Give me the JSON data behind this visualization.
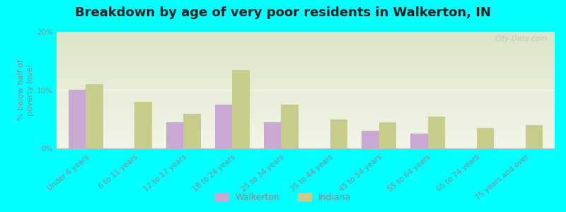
{
  "title": "Breakdown by age of very poor residents in Walkerton, IN",
  "ylabel": "% below half of\npoverty level",
  "categories": [
    "Under 6 years",
    "6 to 11 years",
    "12 to 17 years",
    "18 to 24 years",
    "25 to 34 years",
    "35 to 44 years",
    "45 to 54 years",
    "55 to 64 years",
    "65 to 74 years",
    "75 years and over"
  ],
  "walkerton": [
    10.0,
    0,
    4.5,
    7.5,
    4.5,
    0,
    3.0,
    2.5,
    0,
    0
  ],
  "indiana": [
    11.0,
    8.0,
    6.0,
    13.5,
    7.5,
    5.0,
    4.5,
    5.5,
    3.5,
    4.0
  ],
  "walkerton_color": "#c9a8d4",
  "indiana_color": "#c8cc8a",
  "background_color": "#00ffff",
  "plot_bg_color_top": "#dde5c8",
  "plot_bg_color_bottom": "#f2f5e8",
  "ylim": [
    0,
    20
  ],
  "yticks": [
    0,
    10,
    20
  ],
  "ytick_labels": [
    "0%",
    "10%",
    "20%"
  ],
  "bar_width": 0.35,
  "title_fontsize": 13,
  "axis_label_fontsize": 8,
  "tick_fontsize": 7.5,
  "legend_labels": [
    "Walkerton",
    "Indiana"
  ],
  "watermark": "City-Data.com"
}
